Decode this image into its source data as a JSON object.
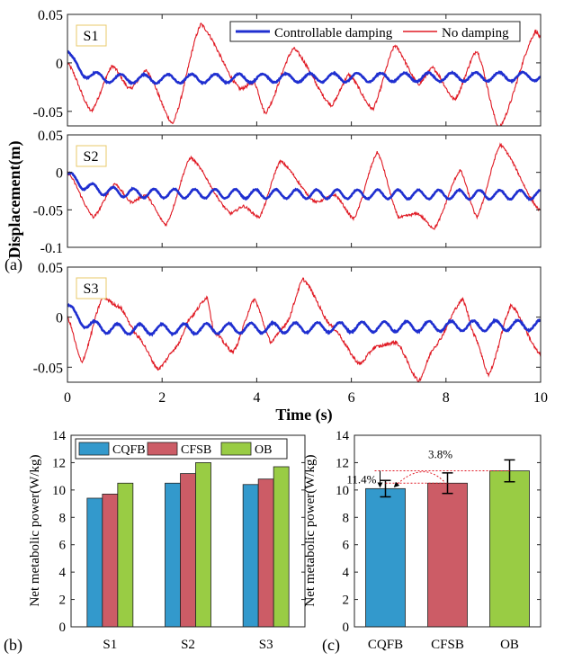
{
  "panel_labels": {
    "a": "(a)",
    "b": "(b)",
    "c": "(c)"
  },
  "colors": {
    "controllable": "#1f2fd0",
    "none": "#e01a24",
    "cqfb": "#3399cc",
    "cfsb": "#cc5c66",
    "ob": "#99cc44",
    "annot": "#e01a24",
    "tag_border": "#e8c86a"
  },
  "chart_data": [
    {
      "type": "line",
      "subplots": [
        {
          "tag": "S1",
          "ylim": [
            -0.065,
            0.05
          ],
          "yticks": [
            {
              "v": 0.05,
              "label": "0.05"
            },
            {
              "v": 0,
              "label": "0"
            },
            {
              "v": -0.05,
              "label": "-0.05"
            }
          ],
          "controllable": {
            "base": -0.017,
            "drift": 0.003,
            "amp": 0.0045,
            "period": 0.5,
            "startY": 0.012,
            "start_decay": 0.25
          },
          "none": {
            "base": -0.01,
            "startY": 0,
            "peaks": [
              [
                0.5,
                -0.05
              ],
              [
                0.95,
                -0.003
              ],
              [
                1.32,
                -0.027
              ],
              [
                1.67,
                -0.008
              ],
              [
                2.22,
                -0.063
              ],
              [
                2.82,
                0.04
              ],
              [
                3.65,
                -0.027
              ],
              [
                3.95,
                -0.02
              ],
              [
                4.18,
                -0.052
              ],
              [
                4.78,
                0.015
              ],
              [
                5.58,
                -0.044
              ],
              [
                5.95,
                -0.012
              ],
              [
                6.45,
                -0.048
              ],
              [
                6.92,
                0.018
              ],
              [
                7.42,
                -0.022
              ],
              [
                7.72,
                -0.005
              ],
              [
                8.18,
                -0.038
              ],
              [
                8.65,
                0.013
              ],
              [
                9.12,
                -0.068
              ],
              [
                9.9,
                0.033
              ],
              [
                10,
                0.025
              ]
            ]
          }
        },
        {
          "tag": "S2",
          "ylim": [
            -0.1,
            0.05
          ],
          "yticks": [
            {
              "v": 0.05,
              "label": "0.05"
            },
            {
              "v": 0,
              "label": "0"
            },
            {
              "v": -0.05,
              "label": "-0.05"
            },
            {
              "v": -0.1,
              "label": "-0.1"
            }
          ],
          "controllable": {
            "base": -0.028,
            "drift": -0.002,
            "amp": 0.006,
            "period": 0.43,
            "startY": -0.002,
            "start_decay": 0.4
          },
          "none": {
            "base": -0.02,
            "startY": 0,
            "peaks": [
              [
                0.55,
                -0.06
              ],
              [
                1.0,
                -0.015
              ],
              [
                1.35,
                -0.04
              ],
              [
                1.65,
                -0.03
              ],
              [
                2.08,
                -0.07
              ],
              [
                2.6,
                0.02
              ],
              [
                3.45,
                -0.055
              ],
              [
                3.72,
                -0.045
              ],
              [
                4.05,
                -0.06
              ],
              [
                4.5,
                0.015
              ],
              [
                5.25,
                -0.04
              ],
              [
                5.65,
                -0.03
              ],
              [
                6.05,
                -0.062
              ],
              [
                6.55,
                0.027
              ],
              [
                7.0,
                -0.06
              ],
              [
                7.4,
                -0.055
              ],
              [
                7.75,
                -0.075
              ],
              [
                8.3,
                0.003
              ],
              [
                8.65,
                -0.06
              ],
              [
                9.15,
                0.037
              ],
              [
                10,
                -0.052
              ]
            ]
          }
        },
        {
          "tag": "S3",
          "ylim": [
            -0.065,
            0.05
          ],
          "yticks": [
            {
              "v": 0.05,
              "label": "0.05"
            },
            {
              "v": 0,
              "label": "0"
            },
            {
              "v": -0.05,
              "label": "-0.05"
            }
          ],
          "controllable": {
            "base": -0.013,
            "drift": 0.005,
            "amp": 0.005,
            "period": 0.47,
            "startY": 0.012,
            "start_decay": 0.3
          },
          "none": {
            "base": -0.01,
            "startY": 0,
            "peaks": [
              [
                0.3,
                -0.045
              ],
              [
                0.75,
                0.02
              ],
              [
                1.1,
                0.01
              ],
              [
                1.5,
                -0.02
              ],
              [
                1.92,
                -0.052
              ],
              [
                2.3,
                -0.03
              ],
              [
                2.6,
                0.0
              ],
              [
                2.95,
                0.02
              ],
              [
                3.1,
                -0.015
              ],
              [
                3.5,
                -0.035
              ],
              [
                3.95,
                0.018
              ],
              [
                4.3,
                -0.025
              ],
              [
                4.62,
                -0.007
              ],
              [
                4.98,
                0.038
              ],
              [
                5.6,
                -0.01
              ],
              [
                6.18,
                -0.047
              ],
              [
                6.5,
                -0.03
              ],
              [
                6.95,
                -0.025
              ],
              [
                7.42,
                -0.064
              ],
              [
                7.75,
                -0.03
              ],
              [
                8.35,
                0.018
              ],
              [
                8.62,
                -0.02
              ],
              [
                8.9,
                -0.058
              ],
              [
                9.38,
                0.012
              ],
              [
                10,
                -0.038
              ]
            ]
          }
        }
      ],
      "xlim": [
        0,
        10
      ],
      "xticks": [
        "0",
        "2",
        "4",
        "6",
        "8",
        "10"
      ],
      "xlabel": "Time (s)",
      "ylabel": "Displacement(m)",
      "legend": [
        {
          "name": "Controllable damping",
          "key": "controllable"
        },
        {
          "name": "No damping",
          "key": "none"
        }
      ],
      "legend_position": "top-right of S1",
      "grid": false
    },
    {
      "type": "bar",
      "categories": [
        "S1",
        "S2",
        "S3"
      ],
      "series": [
        {
          "name": "CQFB",
          "values": [
            9.4,
            10.5,
            10.4
          ]
        },
        {
          "name": "CFSB",
          "values": [
            9.7,
            11.2,
            10.8
          ]
        },
        {
          "name": "OB",
          "values": [
            10.5,
            12.0,
            11.7
          ]
        }
      ],
      "ylabel": "Net metabolic power(W/kg)",
      "ylim": [
        0,
        14
      ],
      "yticks": [
        "0",
        "2",
        "4",
        "6",
        "8",
        "10",
        "12",
        "14"
      ],
      "legend_position": "top-left",
      "grid": false
    },
    {
      "type": "bar",
      "categories": [
        "CQFB",
        "CFSB",
        "OB"
      ],
      "values": [
        10.1,
        10.5,
        11.4
      ],
      "errors": [
        0.6,
        0.75,
        0.8
      ],
      "ylabel": "Net metabolic power(W/kg)",
      "ylim": [
        0,
        14
      ],
      "yticks": [
        "0",
        "2",
        "4",
        "6",
        "8",
        "10",
        "12",
        "14"
      ],
      "annotations": [
        "11.4%",
        "3.8%"
      ],
      "grid": false
    }
  ]
}
